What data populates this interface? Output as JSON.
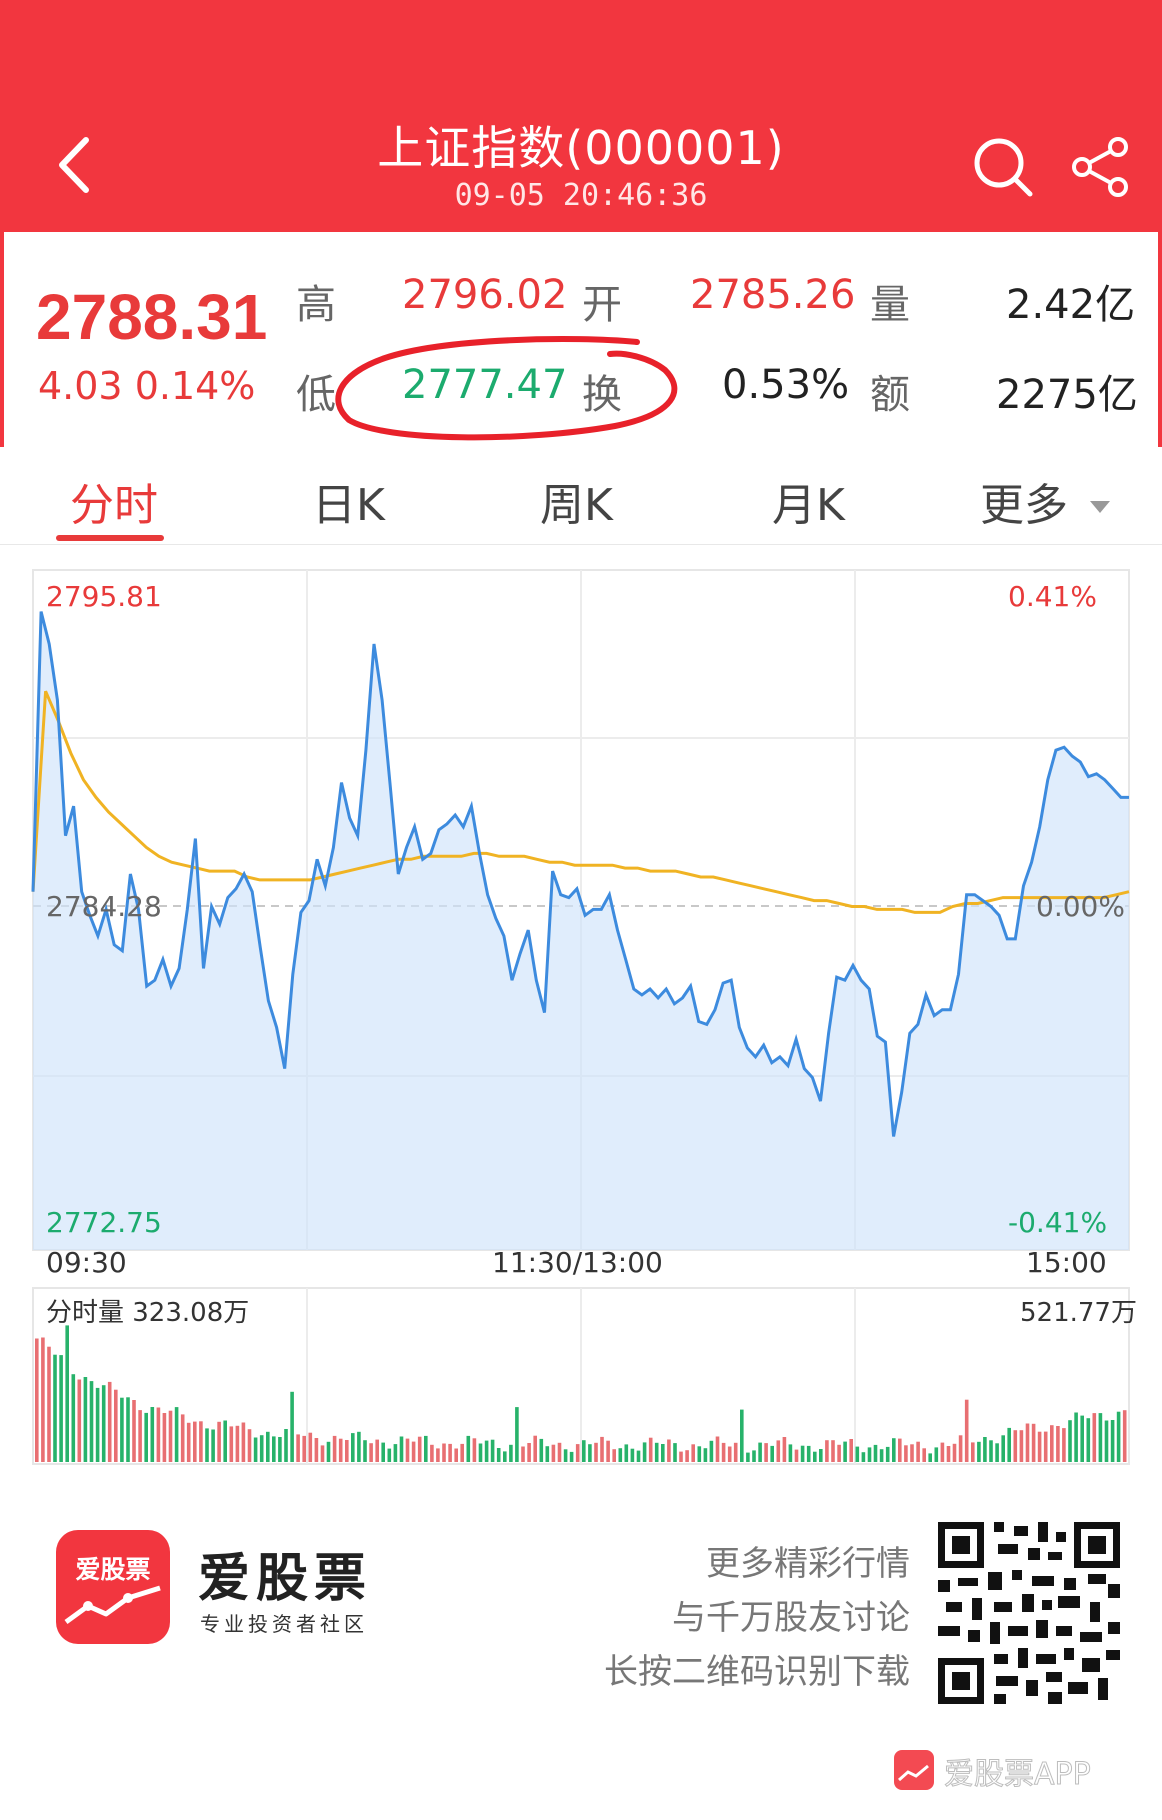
{
  "header": {
    "title": "上证指数(000001)",
    "timestamp": "09-05 20:46:36",
    "bg_color": "#f2363f",
    "icons": [
      "back-arrow-icon",
      "search-icon",
      "share-icon"
    ]
  },
  "quote": {
    "price": "2788.31",
    "change": "4.03 0.14%",
    "high_label": "高",
    "high": "2796.02",
    "open_label": "开",
    "open": "2785.26",
    "volume_label": "量",
    "volume": "2.42亿",
    "low_label": "低",
    "low": "2777.47",
    "turnover_label": "换",
    "turnover": "0.53%",
    "amount_label": "额",
    "amount": "2275亿",
    "up_color": "#e83a3a",
    "down_color": "#1cab6e"
  },
  "tabs": [
    {
      "label": "分时",
      "active": true
    },
    {
      "label": "日K",
      "active": false
    },
    {
      "label": "周K",
      "active": false
    },
    {
      "label": "月K",
      "active": false
    },
    {
      "label": "更多",
      "active": false
    }
  ],
  "chart_data": {
    "type": "line",
    "price_axis": {
      "max": "2795.81",
      "mid": "2784.28",
      "min": "2772.75"
    },
    "pct_axis": {
      "max": "0.41%",
      "mid": "0.00%",
      "min": "-0.41%"
    },
    "ylim": [
      2772.75,
      2795.81
    ],
    "time_labels": [
      "09:30",
      "11:30/13:00",
      "15:00"
    ],
    "series": [
      {
        "values": [
          2784.9,
          2794.4,
          2793.3,
          2791.4,
          2786.8,
          2787.8,
          2784.9,
          2784.1,
          2783.4,
          2784.3,
          2783.1,
          2782.9,
          2785.5,
          2784.3,
          2781.7,
          2781.9,
          2782.6,
          2781.7,
          2782.3,
          2784.3,
          2786.7,
          2782.3,
          2784.4,
          2783.8,
          2784.7,
          2785.0,
          2785.5,
          2784.9,
          2783.0,
          2781.2,
          2780.3,
          2778.9,
          2782.1,
          2784.2,
          2784.6,
          2786.0,
          2785.1,
          2786.4,
          2788.6,
          2787.4,
          2786.8,
          2789.7,
          2793.3,
          2791.4,
          2788.5,
          2785.5,
          2786.4,
          2787.1,
          2786.0,
          2786.2,
          2787.0,
          2787.2,
          2787.5,
          2787.1,
          2787.8,
          2786.2,
          2784.8,
          2784.0,
          2783.4,
          2781.9,
          2782.8,
          2783.6,
          2781.9,
          2780.8,
          2785.6,
          2784.8,
          2784.7,
          2785.0,
          2784.1,
          2784.3,
          2784.3,
          2784.8,
          2783.6,
          2782.6,
          2781.6,
          2781.4,
          2781.6,
          2781.3,
          2781.6,
          2781.1,
          2781.3,
          2781.7,
          2780.5,
          2780.4,
          2780.9,
          2781.8,
          2781.9,
          2780.3,
          2779.6,
          2779.3,
          2779.7,
          2779.1,
          2779.3,
          2779.0,
          2779.9,
          2778.9,
          2778.6,
          2777.8,
          2780.1,
          2782.0,
          2781.9,
          2782.4,
          2781.9,
          2781.6,
          2780.0,
          2779.8,
          2776.6,
          2778.1,
          2780.1,
          2780.4,
          2781.4,
          2780.7,
          2780.9,
          2780.9,
          2782.1,
          2784.8,
          2784.8,
          2784.6,
          2784.4,
          2784.1,
          2783.3,
          2783.3,
          2785.1,
          2785.9,
          2787.1,
          2788.7,
          2789.7,
          2789.8,
          2789.5,
          2789.3,
          2788.8,
          2788.9,
          2788.7,
          2788.4,
          2788.1,
          2788.1
        ]
      },
      {
        "values": [
          2784.9,
          2791.7,
          2790.7,
          2789.6,
          2788.7,
          2788.1,
          2787.6,
          2787.2,
          2786.8,
          2786.4,
          2786.1,
          2785.9,
          2785.8,
          2785.7,
          2785.6,
          2785.6,
          2785.6,
          2785.4,
          2785.3,
          2785.3,
          2785.3,
          2785.3,
          2785.3,
          2785.4,
          2785.5,
          2785.6,
          2785.7,
          2785.8,
          2785.9,
          2786.0,
          2786.0,
          2786.1,
          2786.1,
          2786.1,
          2786.1,
          2786.2,
          2786.2,
          2786.1,
          2786.1,
          2786.1,
          2786.0,
          2785.9,
          2785.9,
          2785.8,
          2785.8,
          2785.8,
          2785.8,
          2785.7,
          2785.7,
          2785.6,
          2785.6,
          2785.6,
          2785.5,
          2785.4,
          2785.4,
          2785.3,
          2785.2,
          2785.1,
          2785.0,
          2784.9,
          2784.8,
          2784.7,
          2784.6,
          2784.6,
          2784.5,
          2784.4,
          2784.4,
          2784.3,
          2784.3,
          2784.3,
          2784.2,
          2784.2,
          2784.2,
          2784.4,
          2784.5,
          2784.5,
          2784.6,
          2784.7,
          2784.7,
          2784.7,
          2784.7,
          2784.7,
          2784.7,
          2784.7,
          2784.7,
          2784.7,
          2784.8,
          2784.9
        ]
      }
    ],
    "volume": {
      "title": "分时量 323.08万",
      "max_label": "521.77万"
    }
  },
  "promo": {
    "logo_text": "爱股票",
    "brand": "爱股票",
    "brand_sub": "专业投资者社区",
    "lines": [
      "更多精彩行情",
      "与千万股友讨论",
      "长按二维码识别下载"
    ],
    "watermark": "爱股票APP"
  }
}
